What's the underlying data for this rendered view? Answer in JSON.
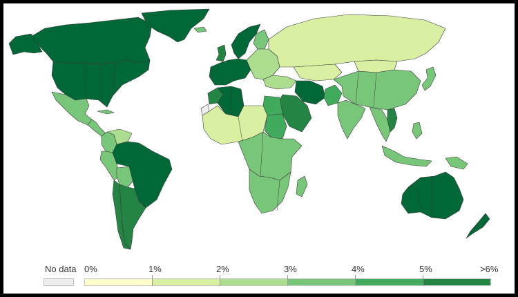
{
  "legend": {
    "nodata_label": "No data",
    "bins": [
      {
        "label": "0%",
        "color": "#ffffcc"
      },
      {
        "label": "1%",
        "color": "#d9f0a3"
      },
      {
        "label": "2%",
        "color": "#addd8e"
      },
      {
        "label": "3%",
        "color": "#78c679"
      },
      {
        "label": "4%",
        "color": "#41ab5d"
      },
      {
        "label": "5%",
        "color": "#238443"
      },
      {
        "label": ">6%",
        "color": "#006837"
      }
    ],
    "nodata_color": "#eeeeee"
  },
  "colors": {
    "lowest": "#ffffcc",
    "level1": "#d9f0a3",
    "level2": "#addd8e",
    "level3": "#78c679",
    "level4": "#41ab5d",
    "level5": "#238443",
    "highest": "#006837",
    "nodata": "#eeeeee",
    "frame": "#000000"
  },
  "regions": [
    {
      "name": "Canada",
      "level": "highest"
    },
    {
      "name": "Greenland",
      "level": "highest"
    },
    {
      "name": "United States",
      "level": "highest"
    },
    {
      "name": "Alaska",
      "level": "highest"
    },
    {
      "name": "Mexico",
      "level": "level3"
    },
    {
      "name": "Central America",
      "level": "level3"
    },
    {
      "name": "Cuba",
      "level": "level3"
    },
    {
      "name": "Colombia",
      "level": "level3"
    },
    {
      "name": "Venezuela",
      "level": "level2"
    },
    {
      "name": "Peru",
      "level": "level3"
    },
    {
      "name": "Bolivia",
      "level": "level3"
    },
    {
      "name": "Brazil",
      "level": "highest"
    },
    {
      "name": "Argentina",
      "level": "level5"
    },
    {
      "name": "Chile",
      "level": "level5"
    },
    {
      "name": "Iceland",
      "level": "level3"
    },
    {
      "name": "Scandinavia",
      "level": "highest"
    },
    {
      "name": "Finland",
      "level": "level3"
    },
    {
      "name": "United Kingdom",
      "level": "level5"
    },
    {
      "name": "Western Europe",
      "level": "highest"
    },
    {
      "name": "Eastern Europe",
      "level": "level2"
    },
    {
      "name": "Russia",
      "level": "level1"
    },
    {
      "name": "Kazakhstan",
      "level": "level1"
    },
    {
      "name": "Turkey",
      "level": "level2"
    },
    {
      "name": "Iran",
      "level": "highest"
    },
    {
      "name": "Saudi Arabia",
      "level": "level5"
    },
    {
      "name": "Egypt",
      "level": "level4"
    },
    {
      "name": "Algeria",
      "level": "highest"
    },
    {
      "name": "Morocco",
      "level": "level5"
    },
    {
      "name": "West Africa",
      "level": "level1"
    },
    {
      "name": "Central Africa",
      "level": "level3"
    },
    {
      "name": "Sudan",
      "level": "level4"
    },
    {
      "name": "Southern Africa",
      "level": "level3"
    },
    {
      "name": "Madagascar",
      "level": "level3"
    },
    {
      "name": "India",
      "level": "level3"
    },
    {
      "name": "Pakistan",
      "level": "level4"
    },
    {
      "name": "China",
      "level": "level3"
    },
    {
      "name": "Mongolia",
      "level": "level1"
    },
    {
      "name": "Southeast Asia",
      "level": "level3"
    },
    {
      "name": "Vietnam",
      "level": "level5"
    },
    {
      "name": "Japan",
      "level": "level3"
    },
    {
      "name": "Indonesia",
      "level": "level3"
    },
    {
      "name": "Philippines",
      "level": "level3"
    },
    {
      "name": "Papua New Guinea",
      "level": "level3"
    },
    {
      "name": "Australia",
      "level": "highest"
    },
    {
      "name": "New Zealand",
      "level": "highest"
    },
    {
      "name": "Western Sahara",
      "level": "nodata"
    }
  ]
}
